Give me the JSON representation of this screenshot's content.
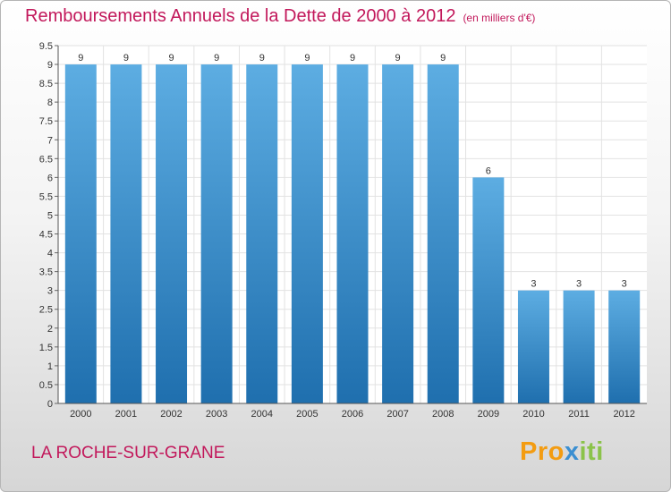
{
  "header": {
    "title": "Remboursements Annuels de la Dette de 2000 à 2012",
    "unit": "(en milliers d'€)"
  },
  "footer": {
    "commune": "LA ROCHE-SUR-GRANE",
    "logo_parts": [
      "Pro",
      "x",
      "iti"
    ]
  },
  "colors": {
    "bar_light": "#5dade2",
    "bar_dark": "#1f6fae",
    "title": "#c2185b"
  },
  "chart_data": {
    "type": "bar",
    "title": "Remboursements Annuels de la Dette de 2000 à 2012",
    "categories": [
      "2000",
      "2001",
      "2002",
      "2003",
      "2004",
      "2005",
      "2006",
      "2007",
      "2008",
      "2009",
      "2010",
      "2011",
      "2012"
    ],
    "values": [
      9,
      9,
      9,
      9,
      9,
      9,
      9,
      9,
      9,
      6,
      3,
      3,
      3
    ],
    "value_labels": [
      "9",
      "9",
      "9",
      "9",
      "9",
      "9",
      "9",
      "9",
      "9",
      "6",
      "3",
      "3",
      "3"
    ],
    "ylim": [
      0,
      9.5
    ],
    "yticks": [
      "0",
      "0.5",
      "1",
      "1.5",
      "2",
      "2.5",
      "3",
      "3.5",
      "4",
      "4.5",
      "5",
      "5.5",
      "6",
      "6.5",
      "7",
      "7.5",
      "8",
      "8.5",
      "9",
      "9.5"
    ],
    "grid": true,
    "legend": "none"
  }
}
